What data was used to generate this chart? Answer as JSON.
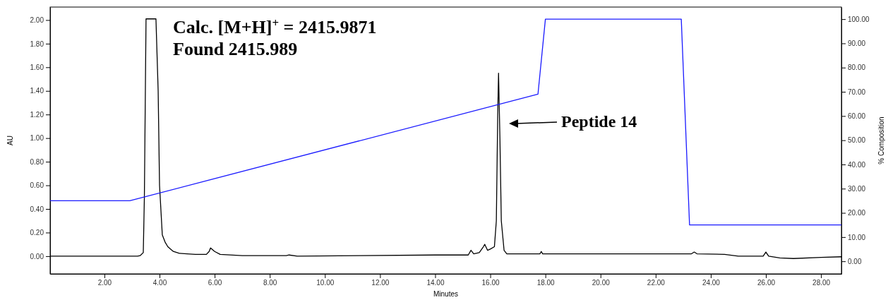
{
  "chart_data": {
    "type": "line",
    "xlabel": "Minutes",
    "ylabel": "AU",
    "y2label": "% Composition",
    "xlim": [
      0.03,
      28.74
    ],
    "xticks": [
      {
        "value": 2,
        "label": "2.00"
      },
      {
        "value": 4,
        "label": "4.00"
      },
      {
        "value": 6,
        "label": "6.00"
      },
      {
        "value": 8,
        "label": "8.00"
      },
      {
        "value": 10,
        "label": "10.00"
      },
      {
        "value": 12,
        "label": "12.00"
      },
      {
        "value": 14,
        "label": "14.00"
      },
      {
        "value": 16,
        "label": "16.00"
      },
      {
        "value": 18,
        "label": "18.00"
      },
      {
        "value": 20,
        "label": "20.00"
      },
      {
        "value": 22,
        "label": "22.00"
      },
      {
        "value": 24,
        "label": "24.00"
      },
      {
        "value": 26,
        "label": "26.00"
      },
      {
        "value": 28,
        "label": "28.00"
      }
    ],
    "ylim": [
      -0.15,
      2.11
    ],
    "yticks": [
      {
        "value": 0,
        "label": "0.00"
      },
      {
        "value": 0.2,
        "label": "0.20"
      },
      {
        "value": 0.4,
        "label": "0.40"
      },
      {
        "value": 0.6,
        "label": "0.60"
      },
      {
        "value": 0.8,
        "label": "0.80"
      },
      {
        "value": 1,
        "label": "1.00"
      },
      {
        "value": 1.2,
        "label": "1.20"
      },
      {
        "value": 1.4,
        "label": "1.40"
      },
      {
        "value": 1.6,
        "label": "1.60"
      },
      {
        "value": 1.8,
        "label": "1.80"
      },
      {
        "value": 2,
        "label": "2.00"
      }
    ],
    "y2lim": [
      -5.2,
      105
    ],
    "y2ticks": [
      {
        "value": 0,
        "label": "0.00"
      },
      {
        "value": 10,
        "label": "10.00"
      },
      {
        "value": 20,
        "label": "20.00"
      },
      {
        "value": 30,
        "label": "30.00"
      },
      {
        "value": 40,
        "label": "40.00"
      },
      {
        "value": 50,
        "label": "50.00"
      },
      {
        "value": 60,
        "label": "60.00"
      },
      {
        "value": 70,
        "label": "70.00"
      },
      {
        "value": 80,
        "label": "80.00"
      },
      {
        "value": 90,
        "label": "90.00"
      },
      {
        "value": 100,
        "label": "100.00"
      }
    ],
    "series": [
      {
        "color": "#000000",
        "x": [
          0.03,
          3.2,
          3.3,
          3.41,
          3.45,
          3.51,
          3.87,
          3.95,
          4.0,
          4.1,
          4.2,
          4.3,
          4.5,
          4.7,
          5.0,
          5.3,
          5.7,
          5.8,
          5.85,
          6.0,
          6.2,
          7.0,
          8.6,
          8.7,
          9.0,
          11.3,
          14.0,
          14.5,
          15.2,
          15.3,
          15.4,
          15.6,
          15.75,
          15.8,
          15.9,
          16.0,
          16.15,
          16.22,
          16.27,
          16.3,
          16.35,
          16.4,
          16.5,
          16.6,
          17.8,
          17.85,
          17.9,
          23.3,
          23.4,
          23.5,
          24.5,
          25.0,
          25.9,
          26.0,
          26.1,
          26.5,
          27.0,
          28.0,
          28.74
        ],
        "values": [
          0.0,
          0.0,
          0.005,
          0.03,
          0.5,
          2.01,
          2.01,
          1.4,
          0.6,
          0.18,
          0.12,
          0.08,
          0.04,
          0.025,
          0.02,
          0.015,
          0.015,
          0.04,
          0.07,
          0.04,
          0.015,
          0.005,
          0.005,
          0.01,
          0.0,
          0.005,
          0.01,
          0.01,
          0.01,
          0.05,
          0.02,
          0.03,
          0.08,
          0.1,
          0.05,
          0.06,
          0.08,
          0.3,
          1.2,
          1.55,
          1.0,
          0.3,
          0.05,
          0.02,
          0.02,
          0.04,
          0.02,
          0.02,
          0.035,
          0.02,
          0.015,
          0.0,
          0.0,
          0.035,
          0.0,
          -0.015,
          -0.02,
          -0.01,
          -0.005
        ]
      },
      {
        "color": "#1a1aff",
        "axis": "y2",
        "x": [
          0.03,
          2.92,
          17.73,
          18.0,
          22.93,
          23.23,
          28.74
        ],
        "values": [
          25,
          25,
          69,
          100,
          100,
          15,
          15
        ]
      }
    ],
    "annotations": [
      "Calc. [M+H]$^{+}$ = 2415.9871",
      "Found 2415.989",
      "Peptide 14"
    ]
  }
}
